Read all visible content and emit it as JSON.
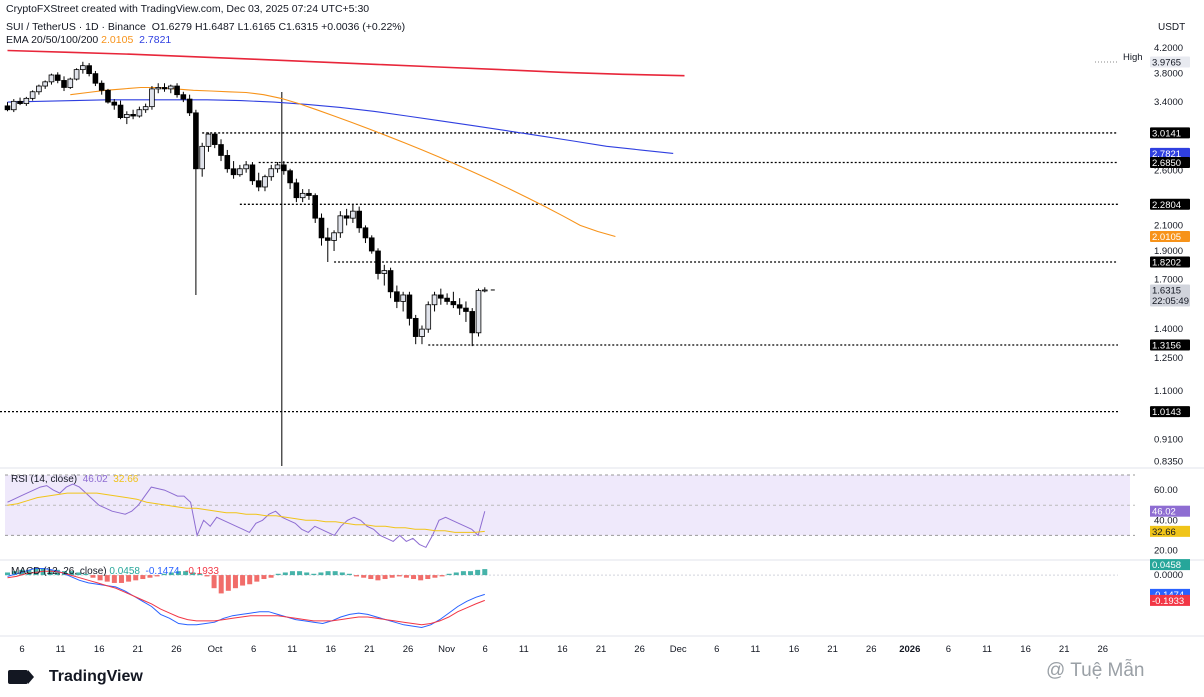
{
  "header": {
    "created": "CryptoFXStreet created with TradingView.com, Dec 03, 2025 07:24 UTC+5:30",
    "symbol": "SUI / TetherUS · 1D · Binance",
    "open": "O1.6279",
    "high": "H1.6487",
    "low": "L1.6165",
    "close": "C1.6315",
    "change": "+0.0036 (+0.22%)",
    "ema_label": "EMA 20/50/100/200",
    "ema50_value": "2.0105",
    "ema100_value": "2.7821",
    "currency": "USDT",
    "high_tag": "High"
  },
  "colors": {
    "up": "#e0e3eb",
    "down": "#000000",
    "ema20": "#7a7a7a",
    "ema50": "#f7931a",
    "ema100": "#2f3fe0",
    "ema200": "#e8263a",
    "rsi": "#8e6dd2",
    "rsi_ma": "#f0c419",
    "macd": "#2962ff",
    "signal": "#f23645",
    "hist_up": "#26a69a",
    "hist_down": "#ef5350"
  },
  "chart_data": {
    "type": "candlestick",
    "title": "SUI / TetherUS · 1D · Binance",
    "price_axis": {
      "ticks": [
        "4.2000",
        "3.8000",
        "3.4000",
        "2.6000",
        "2.1000",
        "1.9000",
        "1.7000",
        "1.4000",
        "1.2500",
        "1.1000",
        "0.9100",
        "0.8350"
      ],
      "ylim": [
        0.82,
        4.3
      ]
    },
    "levels": [
      {
        "label": "3.0141",
        "value": 3.0141,
        "from_index": 31
      },
      {
        "label": "2.6850",
        "value": 2.685,
        "from_index": 40
      },
      {
        "label": "2.2804",
        "value": 2.2804,
        "from_index": 37
      },
      {
        "label": "1.8202",
        "value": 1.8202,
        "from_index": 52
      },
      {
        "label": "1.3156",
        "value": 1.3156,
        "from_index": 67
      },
      {
        "label": "1.0143",
        "value": 1.0143,
        "from_index": 0
      }
    ],
    "right_labels": [
      {
        "label": "3.9765",
        "value": 3.9765,
        "style": "high"
      },
      {
        "label": "3.0141",
        "value": 3.0141,
        "style": "level"
      },
      {
        "label": "2.7821",
        "value": 2.7821,
        "style": "ema100"
      },
      {
        "label": "2.6850",
        "value": 2.685,
        "style": "level"
      },
      {
        "label": "2.2804",
        "value": 2.2804,
        "style": "level"
      },
      {
        "label": "2.0105",
        "value": 2.0105,
        "style": "ema50"
      },
      {
        "label": "1.8202",
        "value": 1.8202,
        "style": "level"
      },
      {
        "label": "1.6315",
        "value": 1.6315,
        "style": "last",
        "sub": "22:05:49"
      },
      {
        "label": "1.3156",
        "value": 1.3156,
        "style": "level"
      },
      {
        "label": "1.0143",
        "value": 1.0143,
        "style": "level"
      }
    ],
    "x_labels": [
      "6",
      "11",
      "16",
      "21",
      "26",
      "Oct",
      "6",
      "11",
      "16",
      "21",
      "26",
      "Nov",
      "6",
      "11",
      "16",
      "21",
      "26",
      "Dec",
      "6",
      "11",
      "16",
      "21",
      "26",
      "2026",
      "6",
      "11",
      "16",
      "21",
      "26"
    ],
    "candles": [
      [
        3.35,
        3.4,
        3.28,
        3.3
      ],
      [
        3.3,
        3.44,
        3.27,
        3.41
      ],
      [
        3.41,
        3.46,
        3.36,
        3.38
      ],
      [
        3.38,
        3.47,
        3.35,
        3.45
      ],
      [
        3.45,
        3.56,
        3.42,
        3.54
      ],
      [
        3.54,
        3.64,
        3.5,
        3.62
      ],
      [
        3.62,
        3.7,
        3.58,
        3.68
      ],
      [
        3.68,
        3.8,
        3.64,
        3.78
      ],
      [
        3.78,
        3.82,
        3.66,
        3.7
      ],
      [
        3.7,
        3.76,
        3.55,
        3.6
      ],
      [
        3.6,
        3.74,
        3.58,
        3.72
      ],
      [
        3.72,
        3.88,
        3.7,
        3.86
      ],
      [
        3.86,
        3.98,
        3.8,
        3.92
      ],
      [
        3.92,
        3.96,
        3.76,
        3.8
      ],
      [
        3.8,
        3.84,
        3.62,
        3.66
      ],
      [
        3.66,
        3.7,
        3.5,
        3.56
      ],
      [
        3.56,
        3.58,
        3.38,
        3.4
      ],
      [
        3.4,
        3.44,
        3.3,
        3.36
      ],
      [
        3.36,
        3.42,
        3.18,
        3.2
      ],
      [
        3.2,
        3.28,
        3.12,
        3.24
      ],
      [
        3.24,
        3.3,
        3.18,
        3.22
      ],
      [
        3.22,
        3.34,
        3.2,
        3.3
      ],
      [
        3.3,
        3.38,
        3.26,
        3.34
      ],
      [
        3.34,
        3.62,
        3.3,
        3.58
      ],
      [
        3.58,
        3.66,
        3.52,
        3.6
      ],
      [
        3.6,
        3.66,
        3.54,
        3.58
      ],
      [
        3.58,
        3.64,
        3.52,
        3.62
      ],
      [
        3.62,
        3.66,
        3.46,
        3.5
      ],
      [
        3.5,
        3.54,
        3.4,
        3.44
      ],
      [
        3.44,
        3.5,
        3.22,
        3.26
      ],
      [
        3.26,
        3.3,
        1.6,
        2.62
      ],
      [
        2.62,
        2.9,
        2.54,
        2.86
      ],
      [
        2.86,
        3.02,
        2.8,
        3.0
      ],
      [
        3.0,
        3.02,
        2.84,
        2.88
      ],
      [
        2.88,
        2.94,
        2.7,
        2.76
      ],
      [
        2.76,
        2.82,
        2.58,
        2.62
      ],
      [
        2.62,
        2.7,
        2.52,
        2.56
      ],
      [
        2.56,
        2.66,
        2.54,
        2.62
      ],
      [
        2.62,
        2.7,
        2.58,
        2.66
      ],
      [
        2.66,
        2.69,
        2.46,
        2.5
      ],
      [
        2.5,
        2.58,
        2.4,
        2.44
      ],
      [
        2.44,
        2.56,
        2.4,
        2.54
      ],
      [
        2.54,
        2.66,
        2.5,
        2.62
      ],
      [
        2.62,
        2.69,
        2.58,
        2.66
      ],
      [
        2.66,
        2.7,
        2.56,
        2.6
      ],
      [
        2.6,
        2.62,
        2.42,
        2.48
      ],
      [
        2.48,
        2.52,
        2.3,
        2.34
      ],
      [
        2.34,
        2.42,
        2.3,
        2.38
      ],
      [
        2.38,
        2.42,
        2.32,
        2.36
      ],
      [
        2.36,
        2.38,
        2.12,
        2.16
      ],
      [
        2.16,
        2.2,
        1.94,
        2.0
      ],
      [
        2.0,
        2.08,
        1.82,
        1.98
      ],
      [
        1.98,
        2.06,
        1.9,
        2.04
      ],
      [
        2.04,
        2.22,
        2.0,
        2.18
      ],
      [
        2.18,
        2.24,
        2.1,
        2.16
      ],
      [
        2.16,
        2.28,
        2.12,
        2.22
      ],
      [
        2.22,
        2.26,
        2.04,
        2.08
      ],
      [
        2.08,
        2.1,
        1.96,
        2.0
      ],
      [
        2.0,
        2.02,
        1.88,
        1.9
      ],
      [
        1.9,
        1.92,
        1.7,
        1.74
      ],
      [
        1.74,
        1.8,
        1.66,
        1.76
      ],
      [
        1.76,
        1.78,
        1.58,
        1.62
      ],
      [
        1.62,
        1.66,
        1.52,
        1.56
      ],
      [
        1.56,
        1.62,
        1.5,
        1.6
      ],
      [
        1.6,
        1.62,
        1.42,
        1.46
      ],
      [
        1.46,
        1.48,
        1.32,
        1.36
      ],
      [
        1.36,
        1.42,
        1.32,
        1.4
      ],
      [
        1.4,
        1.56,
        1.38,
        1.54
      ],
      [
        1.54,
        1.62,
        1.5,
        1.6
      ],
      [
        1.6,
        1.64,
        1.54,
        1.58
      ],
      [
        1.58,
        1.61,
        1.54,
        1.56
      ],
      [
        1.56,
        1.62,
        1.52,
        1.54
      ],
      [
        1.54,
        1.58,
        1.48,
        1.52
      ],
      [
        1.52,
        1.56,
        1.44,
        1.5
      ],
      [
        1.5,
        1.52,
        1.31,
        1.38
      ],
      [
        1.38,
        1.64,
        1.36,
        1.6279
      ],
      [
        1.6279,
        1.6487,
        1.6165,
        1.6315
      ]
    ],
    "ema_series": {
      "EMA20": [
        3.38,
        3.4,
        3.44,
        3.48,
        3.52,
        3.55,
        3.58,
        3.6,
        3.61,
        3.62,
        3.62,
        3.6,
        3.57,
        3.53,
        3.5,
        3.46,
        3.42,
        3.4,
        3.3,
        3.1,
        2.95,
        2.85,
        2.78,
        2.72,
        2.66,
        2.6,
        2.52,
        2.45,
        2.35,
        2.24,
        2.12,
        2.02,
        1.92,
        1.82,
        1.74,
        1.66
      ],
      "EMA50": [
        3.5,
        3.53,
        3.56,
        3.58,
        3.6,
        3.6,
        3.58,
        3.56,
        3.55,
        3.54,
        3.53,
        3.5,
        3.45,
        3.38,
        3.3,
        3.22,
        3.14,
        3.06,
        2.98,
        2.9,
        2.82,
        2.74,
        2.66,
        2.58,
        2.5,
        2.42,
        2.34,
        2.26,
        2.18,
        2.1,
        2.05,
        2.0105
      ],
      "EMA100": [
        3.4,
        3.41,
        3.42,
        3.43,
        3.43,
        3.43,
        3.43,
        3.42,
        3.4,
        3.37,
        3.33,
        3.28,
        3.22,
        3.16,
        3.1,
        3.04,
        2.98,
        2.92,
        2.86,
        2.82,
        2.7821
      ],
      "EMA200": [
        4.16,
        4.13,
        4.1,
        4.06,
        4.02,
        3.98,
        3.94,
        3.9,
        3.86,
        3.82,
        3.79,
        3.77
      ]
    },
    "rsi": {
      "label": "RSI (14, close)",
      "value": "46.02",
      "ma_value": "32.66",
      "ticks": [
        "60.00",
        "40.00",
        "20.00"
      ],
      "ylim": [
        15,
        72
      ],
      "series": [
        52,
        54,
        56,
        58,
        60,
        62,
        63,
        60,
        58,
        62,
        64,
        62,
        58,
        54,
        50,
        48,
        46,
        45,
        44,
        46,
        50,
        56,
        62,
        61,
        60,
        58,
        56,
        56,
        52,
        30,
        40,
        36,
        42,
        40,
        38,
        36,
        34,
        32,
        38,
        40,
        44,
        46,
        42,
        40,
        38,
        34,
        32,
        36,
        34,
        32,
        30,
        36,
        40,
        42,
        40,
        36,
        34,
        30,
        28,
        26,
        30,
        26,
        28,
        24,
        22,
        30,
        40,
        42,
        40,
        38,
        36,
        34,
        30,
        46.02
      ],
      "ma_series": [
        50,
        51,
        53,
        55,
        56,
        57,
        58,
        58,
        58,
        58,
        57,
        56,
        55,
        54,
        52,
        51,
        50,
        49,
        48,
        48,
        47,
        46,
        45,
        45,
        44,
        44,
        43,
        43,
        42,
        41,
        40,
        40,
        39,
        39,
        38,
        37,
        37,
        36,
        36,
        35,
        35,
        34,
        34,
        33,
        33,
        32,
        32,
        32,
        32.66
      ]
    },
    "macd": {
      "label": "MACD (12, 26, close)",
      "hist_value": "0.0458",
      "macd_value": "-0.1474",
      "signal_value": "-0.1933",
      "ticks": [
        "0.0000"
      ],
      "ylim": [
        -0.45,
        0.1
      ],
      "hist": [
        0.02,
        0.03,
        0.04,
        0.04,
        0.05,
        0.05,
        0.04,
        0.04,
        0.03,
        0.03,
        0.02,
        0.01,
        -0.02,
        -0.04,
        -0.05,
        -0.06,
        -0.06,
        -0.05,
        -0.04,
        -0.03,
        -0.02,
        -0.01,
        0.01,
        0.02,
        0.03,
        0.03,
        0.02,
        0.01,
        -0.01,
        -0.1,
        -0.14,
        -0.12,
        -0.1,
        -0.08,
        -0.07,
        -0.05,
        -0.03,
        -0.02,
        0.01,
        0.02,
        0.03,
        0.03,
        0.02,
        0.01,
        0.02,
        0.03,
        0.03,
        0.02,
        0.01,
        -0.01,
        -0.02,
        -0.03,
        -0.04,
        -0.03,
        -0.02,
        -0.01,
        -0.02,
        -0.03,
        -0.04,
        -0.03,
        -0.02,
        -0.01,
        0.01,
        0.02,
        0.03,
        0.03,
        0.04,
        0.0458
      ],
      "macd_series": [
        -0.01,
        0.01,
        0.03,
        0.05,
        0.05,
        0.04,
        0.02,
        -0.01,
        -0.04,
        -0.06,
        -0.07,
        -0.08,
        -0.09,
        -0.12,
        -0.16,
        -0.2,
        -0.24,
        -0.3,
        -0.33,
        -0.37,
        -0.38,
        -0.38,
        -0.37,
        -0.36,
        -0.33,
        -0.31,
        -0.3,
        -0.29,
        -0.28,
        -0.28,
        -0.3,
        -0.32,
        -0.34,
        -0.35,
        -0.36,
        -0.37,
        -0.35,
        -0.32,
        -0.3,
        -0.29,
        -0.3,
        -0.32,
        -0.34,
        -0.36,
        -0.38,
        -0.39,
        -0.4,
        -0.38,
        -0.34,
        -0.29,
        -0.24,
        -0.2,
        -0.17,
        -0.1474
      ],
      "signal_series": [
        -0.02,
        -0.01,
        0.01,
        0.02,
        0.03,
        0.03,
        0.02,
        0.0,
        -0.02,
        -0.04,
        -0.06,
        -0.08,
        -0.1,
        -0.13,
        -0.16,
        -0.19,
        -0.22,
        -0.26,
        -0.29,
        -0.32,
        -0.34,
        -0.35,
        -0.35,
        -0.35,
        -0.34,
        -0.33,
        -0.32,
        -0.31,
        -0.31,
        -0.31,
        -0.31,
        -0.32,
        -0.33,
        -0.34,
        -0.35,
        -0.35,
        -0.35,
        -0.34,
        -0.33,
        -0.32,
        -0.32,
        -0.33,
        -0.34,
        -0.35,
        -0.36,
        -0.37,
        -0.38,
        -0.37,
        -0.35,
        -0.32,
        -0.28,
        -0.25,
        -0.22,
        -0.1933
      ]
    }
  },
  "footer": {
    "brand": "TradingView",
    "watermark": "@ Tuệ Mẫn"
  }
}
